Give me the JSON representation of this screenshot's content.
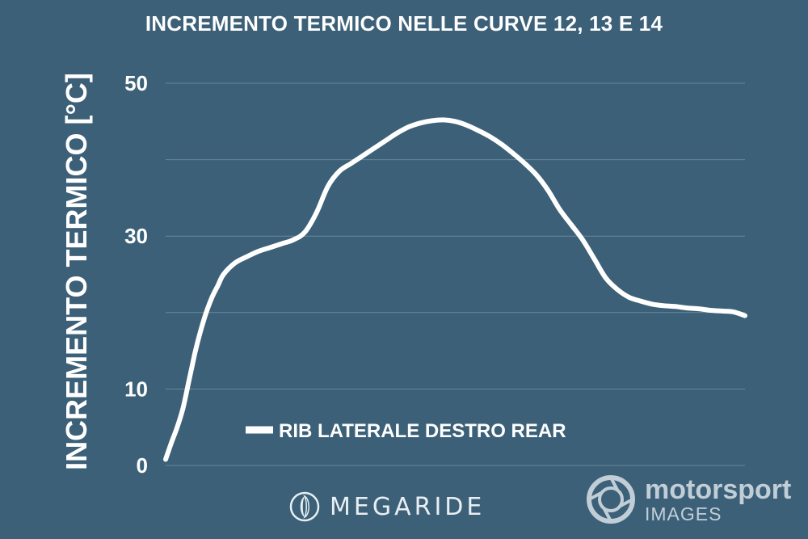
{
  "chart_data": {
    "type": "line",
    "title": "INCREMENTO TERMICO NELLE CURVE 12, 13 E 14",
    "ylabel": "INCREMENTO TERMICO [°C]",
    "xlabel": "",
    "ylim": [
      0,
      50
    ],
    "y_ticks": [
      0,
      10,
      30,
      50
    ],
    "y_tick_labels": [
      "0",
      "10",
      "30",
      "50"
    ],
    "gridlines": [
      10,
      20,
      30,
      40,
      50
    ],
    "grid": true,
    "legend_position": "bottom-left",
    "series": [
      {
        "name": "RIB LATERALE DESTRO REAR",
        "color": "#ffffff",
        "x": [
          0,
          1,
          2,
          3,
          4,
          5,
          6,
          7,
          8,
          9,
          10,
          12,
          14,
          16,
          18,
          20,
          22,
          24,
          26,
          28,
          30,
          32,
          34,
          36,
          38,
          40,
          42,
          44,
          46,
          48,
          50,
          52,
          54,
          56,
          58,
          60,
          62,
          64,
          66,
          68,
          70,
          72,
          74,
          76,
          78,
          80,
          82,
          84,
          86,
          88,
          90,
          92,
          94,
          96,
          98,
          100
        ],
        "values": [
          0.8,
          3,
          5,
          7.5,
          11,
          14.5,
          17.5,
          20,
          22,
          23.5,
          25,
          26.5,
          27.3,
          28,
          28.5,
          29,
          29.5,
          30.5,
          33,
          36.5,
          38.5,
          39.5,
          40.5,
          41.5,
          42.5,
          43.5,
          44.3,
          44.8,
          45.1,
          45.2,
          45,
          44.5,
          43.8,
          43,
          42,
          40.8,
          39.5,
          38,
          36,
          33.5,
          31.5,
          29.5,
          27,
          24.5,
          23,
          22,
          21.5,
          21.1,
          20.9,
          20.8,
          20.6,
          20.5,
          20.3,
          20.2,
          20.1,
          19.6
        ]
      }
    ]
  },
  "branding": {
    "megaride": "MEGARIDE",
    "motorsport": "motorsport",
    "images": "IMAGES"
  },
  "colors": {
    "background": "#3b6078",
    "line": "#ffffff",
    "grid": "#6a8799"
  }
}
